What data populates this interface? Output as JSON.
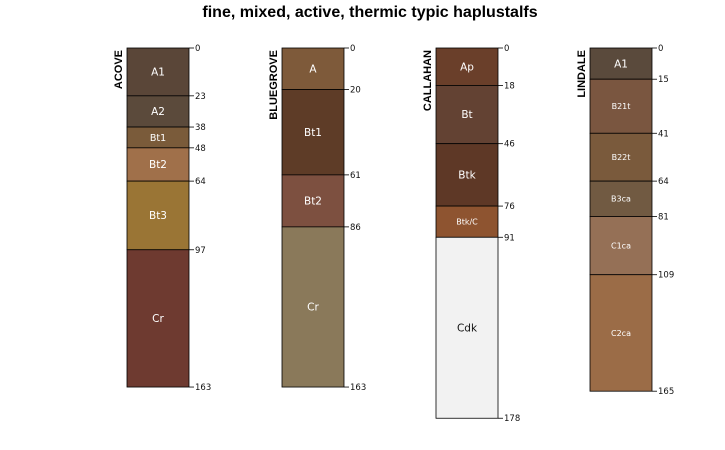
{
  "chart_data": {
    "type": "soil-profile",
    "title": "fine, mixed, active, thermic typic haplustalfs",
    "depth_unit": "cm",
    "ylim": [
      0,
      178
    ],
    "profiles": [
      {
        "name": "ACOVE",
        "horizons": [
          {
            "name": "A1",
            "top": 0,
            "bottom": 23,
            "color": "#5a4638"
          },
          {
            "name": "A2",
            "top": 23,
            "bottom": 38,
            "color": "#5b4a3b"
          },
          {
            "name": "Bt1",
            "top": 38,
            "bottom": 48,
            "color": "#7a5b3a"
          },
          {
            "name": "Bt2",
            "top": 48,
            "bottom": 64,
            "color": "#a0704a"
          },
          {
            "name": "Bt3",
            "top": 64,
            "bottom": 97,
            "color": "#9a7535"
          },
          {
            "name": "Cr",
            "top": 97,
            "bottom": 163,
            "color": "#6e3a30"
          }
        ]
      },
      {
        "name": "BLUEGROVE",
        "horizons": [
          {
            "name": "A",
            "top": 0,
            "bottom": 20,
            "color": "#7e5a3a"
          },
          {
            "name": "Bt1",
            "top": 20,
            "bottom": 61,
            "color": "#5e3c27"
          },
          {
            "name": "Bt2",
            "top": 61,
            "bottom": 86,
            "color": "#7d5040"
          },
          {
            "name": "Cr",
            "top": 86,
            "bottom": 163,
            "color": "#8a795a"
          }
        ]
      },
      {
        "name": "CALLAHAN",
        "horizons": [
          {
            "name": "Ap",
            "top": 0,
            "bottom": 18,
            "color": "#6a3f2a"
          },
          {
            "name": "Bt",
            "top": 18,
            "bottom": 46,
            "color": "#634233"
          },
          {
            "name": "Btk",
            "top": 46,
            "bottom": 76,
            "color": "#5e3826"
          },
          {
            "name": "Btk/C",
            "top": 76,
            "bottom": 91,
            "color": "#8e5430"
          },
          {
            "name": "Cdk",
            "top": 91,
            "bottom": 178,
            "color": "#f2f2f2"
          }
        ]
      },
      {
        "name": "LINDALE",
        "horizons": [
          {
            "name": "A1",
            "top": 0,
            "bottom": 15,
            "color": "#5a4a3c"
          },
          {
            "name": "B21t",
            "top": 15,
            "bottom": 41,
            "color": "#7a5640"
          },
          {
            "name": "B22t",
            "top": 41,
            "bottom": 64,
            "color": "#7a5a3c"
          },
          {
            "name": "B3ca",
            "top": 64,
            "bottom": 81,
            "color": "#715a42"
          },
          {
            "name": "C1ca",
            "top": 81,
            "bottom": 109,
            "color": "#957056"
          },
          {
            "name": "C2ca",
            "top": 109,
            "bottom": 165,
            "color": "#9b6c47"
          }
        ]
      }
    ]
  }
}
